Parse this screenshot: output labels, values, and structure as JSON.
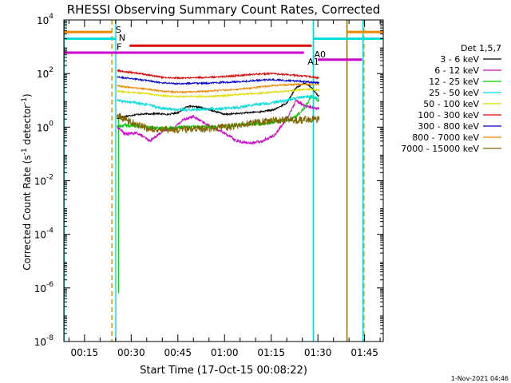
{
  "chart_data": {
    "type": "line",
    "title": "RHESSI Observing Summary Count Rates, Corrected",
    "xlabel": "Start Time (17-Oct-15 00:08:22)",
    "ylabel_parts": {
      "pre": "Corrected Count Rate (s",
      "exp": "-1",
      "mid": " detector",
      "exp2": "-1",
      "post": ")"
    },
    "y_scale": "log",
    "ylim": [
      1e-08,
      10000.0
    ],
    "xlim_min": [
      8.367,
      111.0
    ],
    "x_unit": "minutes after 00:00 UT",
    "x_ticks": [
      {
        "value": 15,
        "label": "00:15"
      },
      {
        "value": 30,
        "label": "00:30"
      },
      {
        "value": 45,
        "label": "00:45"
      },
      {
        "value": 60,
        "label": "01:00"
      },
      {
        "value": 75,
        "label": "01:15"
      },
      {
        "value": 90,
        "label": "01:30"
      },
      {
        "value": 105,
        "label": "01:45"
      }
    ],
    "y_ticks": [
      {
        "value": 4,
        "mant": "10",
        "exp": "4"
      },
      {
        "value": 2,
        "mant": "10",
        "exp": "2"
      },
      {
        "value": 0,
        "mant": "10",
        "exp": "0"
      },
      {
        "value": -2,
        "mant": "10",
        "exp": "-2"
      },
      {
        "value": -4,
        "mant": "10",
        "exp": "-4"
      },
      {
        "value": -6,
        "mant": "10",
        "exp": "-6"
      },
      {
        "value": -8,
        "mant": "10",
        "exp": "-8"
      }
    ],
    "legend_title": "Det 1,5,7",
    "legend_position": "right",
    "series": [
      {
        "name": "3 - 6 keV",
        "color": "#000000",
        "points": [
          [
            25,
            2.0
          ],
          [
            28,
            2.5
          ],
          [
            32,
            3.0
          ],
          [
            38,
            3.2
          ],
          [
            42,
            3.0
          ],
          [
            45,
            3.5
          ],
          [
            48,
            6.0
          ],
          [
            52,
            5.5
          ],
          [
            56,
            4.2
          ],
          [
            60,
            3.0
          ],
          [
            64,
            3.2
          ],
          [
            68,
            3.5
          ],
          [
            72,
            3.8
          ],
          [
            76,
            4.5
          ],
          [
            80,
            8.0
          ],
          [
            83,
            30
          ],
          [
            86,
            45
          ],
          [
            88,
            30
          ],
          [
            90,
            15
          ]
        ]
      },
      {
        "name": "6 - 12 keV",
        "color": "#cc00cc",
        "points": [
          [
            25,
            1.2
          ],
          [
            28,
            0.55
          ],
          [
            32,
            0.6
          ],
          [
            36,
            0.3
          ],
          [
            40,
            0.7
          ],
          [
            44,
            1.0
          ],
          [
            47,
            2.0
          ],
          [
            50,
            2.5
          ],
          [
            53,
            1.5
          ],
          [
            56,
            1.0
          ],
          [
            60,
            0.6
          ],
          [
            64,
            0.3
          ],
          [
            68,
            0.25
          ],
          [
            72,
            0.3
          ],
          [
            76,
            0.5
          ],
          [
            80,
            2.0
          ],
          [
            83,
            10
          ],
          [
            86,
            6
          ],
          [
            90,
            5
          ]
        ]
      },
      {
        "name": "12 - 25 keV",
        "color": "#00cc00",
        "points": [
          [
            25,
            1.0
          ],
          [
            28,
            1.2
          ],
          [
            32,
            1.1
          ],
          [
            36,
            0.95
          ],
          [
            40,
            0.9
          ],
          [
            45,
            1.0
          ],
          [
            50,
            1.0
          ],
          [
            55,
            1.0
          ],
          [
            60,
            1.1
          ],
          [
            65,
            1.2
          ],
          [
            70,
            1.3
          ],
          [
            75,
            1.5
          ],
          [
            80,
            1.8
          ],
          [
            83,
            2.5
          ],
          [
            86,
            6
          ],
          [
            88,
            14
          ],
          [
            90,
            10
          ]
        ]
      },
      {
        "name": "25 - 50 keV",
        "color": "#00dddd",
        "points": [
          [
            25,
            10
          ],
          [
            28,
            9
          ],
          [
            32,
            8
          ],
          [
            36,
            6.5
          ],
          [
            40,
            5
          ],
          [
            45,
            4.5
          ],
          [
            50,
            4.5
          ],
          [
            55,
            4.7
          ],
          [
            60,
            5.0
          ],
          [
            65,
            5.5
          ],
          [
            70,
            7
          ],
          [
            75,
            8
          ],
          [
            80,
            10
          ],
          [
            83,
            12
          ],
          [
            86,
            14
          ],
          [
            90,
            12
          ]
        ]
      },
      {
        "name": "50 - 100 keV",
        "color": "#dddd00",
        "points": [
          [
            25,
            22
          ],
          [
            30,
            20
          ],
          [
            35,
            18
          ],
          [
            40,
            15
          ],
          [
            45,
            14
          ],
          [
            50,
            14
          ],
          [
            55,
            14
          ],
          [
            60,
            15
          ],
          [
            65,
            17
          ],
          [
            70,
            18
          ],
          [
            75,
            20
          ],
          [
            80,
            22
          ],
          [
            86,
            26
          ],
          [
            90,
            24
          ]
        ]
      },
      {
        "name": "100 - 300 keV",
        "color": "#dd0000",
        "points": [
          [
            25,
            130
          ],
          [
            30,
            110
          ],
          [
            35,
            90
          ],
          [
            40,
            72
          ],
          [
            45,
            68
          ],
          [
            50,
            70
          ],
          [
            55,
            72
          ],
          [
            60,
            78
          ],
          [
            65,
            85
          ],
          [
            70,
            95
          ],
          [
            75,
            100
          ],
          [
            80,
            90
          ],
          [
            86,
            80
          ],
          [
            90,
            70
          ]
        ]
      },
      {
        "name": "300 - 800 keV",
        "color": "#0000cc",
        "points": [
          [
            25,
            75
          ],
          [
            30,
            65
          ],
          [
            35,
            55
          ],
          [
            40,
            45
          ],
          [
            45,
            42
          ],
          [
            50,
            43
          ],
          [
            55,
            44
          ],
          [
            60,
            47
          ],
          [
            65,
            50
          ],
          [
            70,
            55
          ],
          [
            75,
            60
          ],
          [
            80,
            55
          ],
          [
            86,
            50
          ],
          [
            90,
            45
          ]
        ]
      },
      {
        "name": "800 - 7000 keV",
        "color": "#ee8800",
        "points": [
          [
            25,
            35
          ],
          [
            30,
            30
          ],
          [
            35,
            26
          ],
          [
            40,
            22
          ],
          [
            45,
            20
          ],
          [
            50,
            21
          ],
          [
            55,
            22
          ],
          [
            60,
            24
          ],
          [
            65,
            26
          ],
          [
            70,
            30
          ],
          [
            75,
            35
          ],
          [
            80,
            38
          ],
          [
            86,
            40
          ],
          [
            90,
            38
          ]
        ]
      },
      {
        "name": "7000 - 15000 keV",
        "color": "#806600",
        "points": [
          [
            25,
            3.0
          ],
          [
            30,
            1.5
          ],
          [
            35,
            0.9
          ],
          [
            40,
            0.8
          ],
          [
            45,
            0.8
          ],
          [
            50,
            0.85
          ],
          [
            55,
            0.9
          ],
          [
            60,
            1.0
          ],
          [
            65,
            1.2
          ],
          [
            70,
            1.5
          ],
          [
            75,
            1.7
          ],
          [
            80,
            2.0
          ],
          [
            84,
            1.8
          ],
          [
            88,
            2.0
          ],
          [
            90,
            2.0
          ]
        ]
      }
    ],
    "annotations": [
      {
        "label": "S",
        "color": "#ee8800",
        "x": 25.0,
        "y_log": 3.65
      },
      {
        "label": "N",
        "color": "#00dddd",
        "x": 26.0,
        "y_log": 3.35
      },
      {
        "label": "F",
        "color": "#dd0000",
        "x": 25.3,
        "y_log": 3.0
      },
      {
        "label": "A0",
        "color": "#cc00cc",
        "x": 88.8,
        "y_log": 2.72
      },
      {
        "label": "A1",
        "color": "#cc00cc",
        "x": 86.7,
        "y_log": 2.45
      }
    ],
    "flag_bars": [
      {
        "name": "saa",
        "color": "#ee8800",
        "y_log": 3.55,
        "segments": [
          [
            8.4,
            23.8
          ],
          [
            99.4,
            111.0
          ]
        ]
      },
      {
        "name": "night",
        "color": "#00dddd",
        "y_log": 3.3,
        "segments": [
          [
            8.4,
            25.1
          ],
          [
            88.5,
            111.0
          ]
        ]
      },
      {
        "name": "flare",
        "color": "#dd0000",
        "y_log": 3.04,
        "segments": [
          [
            29.5,
            88.0
          ]
        ]
      },
      {
        "name": "attenuator-a0",
        "color": "#cc00cc",
        "y_log": 2.78,
        "segments": [
          [
            8.4,
            85.5
          ]
        ]
      },
      {
        "name": "attenuator-a1",
        "color": "#cc00cc",
        "y_log": 2.52,
        "segments": [
          [
            90.0,
            104.2
          ]
        ]
      }
    ],
    "vlines": [
      {
        "x": 8.45,
        "color": "#00dddd",
        "style": "solid"
      },
      {
        "x": 23.8,
        "color": "#ee8800",
        "style": "dashed"
      },
      {
        "x": 25.05,
        "color": "#00dddd",
        "style": "solid"
      },
      {
        "x": 88.5,
        "color": "#00dddd",
        "style": "solid"
      },
      {
        "x": 99.35,
        "color": "#806600",
        "style": "solid"
      },
      {
        "x": 104.5,
        "color": "#00dddd",
        "style": "solid"
      },
      {
        "x": 104.8,
        "color": "#ee8800",
        "style": "dashed"
      }
    ],
    "green_spike": {
      "x": 25.9,
      "y_from_log": -6.2,
      "y_to_log": 0.4,
      "color": "#00cc00"
    },
    "data_extent_min": [
      25.5,
      90.5
    ]
  },
  "footer_date": "1-Nov-2021 04:46"
}
